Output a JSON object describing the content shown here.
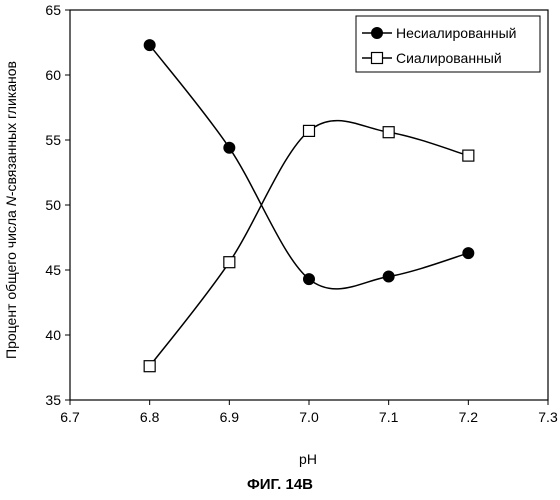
{
  "chart_data": {
    "type": "line",
    "xlabel": "pH",
    "ylabel_parts": [
      "Процент общего числа ",
      "N",
      "-связанных гликанов"
    ],
    "xlim": [
      6.7,
      7.3
    ],
    "ylim": [
      35,
      65
    ],
    "xticks": [
      "6.7",
      "6.8",
      "6.9",
      "7.0",
      "7.1",
      "7.2",
      "7.3"
    ],
    "yticks": [
      "35",
      "40",
      "45",
      "50",
      "55",
      "60",
      "65"
    ],
    "grid": false,
    "legend_position": "top-right",
    "series": [
      {
        "name": "Несиалированный",
        "marker": "filled-circle",
        "color": "#000000",
        "x": [
          6.8,
          6.9,
          7.0,
          7.1,
          7.2
        ],
        "y": [
          62.3,
          54.4,
          44.3,
          44.5,
          46.3
        ]
      },
      {
        "name": "Сиалированный",
        "marker": "open-square",
        "color": "#000000",
        "x": [
          6.8,
          6.9,
          7.0,
          7.1,
          7.2
        ],
        "y": [
          37.6,
          45.6,
          55.7,
          55.6,
          53.8
        ]
      }
    ]
  },
  "caption": "ФИГ. 14В"
}
